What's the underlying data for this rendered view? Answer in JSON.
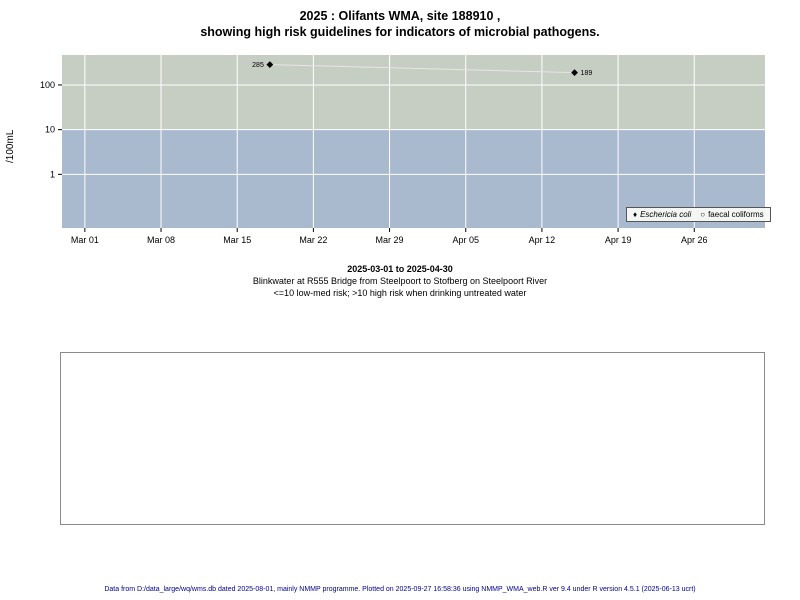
{
  "title": {
    "line1": "2025 : Olifants WMA, site 188910 ,",
    "line2": "showing high risk guidelines for indicators of microbial pathogens."
  },
  "chart_data": {
    "type": "scatter",
    "title": "2025 : Olifants WMA, site 188910 , showing high risk guidelines for indicators of microbial pathogens.",
    "ylabel": "/100mL",
    "y_scale": "log10",
    "y_tick_values": [
      1,
      10,
      100
    ],
    "y_tick_labels": [
      "1",
      "10",
      "100"
    ],
    "y_domain_log": [
      -1.2,
      2.67
    ],
    "x_tick_labels": [
      "Mar 01",
      "Mar 08",
      "Mar 15",
      "Mar 22",
      "Mar 29",
      "Apr 05",
      "Apr 12",
      "Apr 19",
      "Apr 26"
    ],
    "x_tick_days": [
      0,
      7,
      14,
      21,
      28,
      35,
      42,
      49,
      56
    ],
    "x_domain_days": [
      -2.1,
      62.5
    ],
    "risk_threshold": 10,
    "bands": {
      "high_risk_color": "#c6cdc3",
      "low_risk_color": "#a9bacf"
    },
    "grid_color": "#ffffff",
    "line_color": "#e6e6e6",
    "legend_position": "bottom-right",
    "legend": {
      "ecoli_marker": "♦",
      "faecal_marker": "○"
    },
    "series": [
      {
        "name": "Eschericia coli",
        "marker": "diamond",
        "points": [
          {
            "day": 17,
            "value": 285,
            "label": "285",
            "label_side": "left"
          },
          {
            "day": 45,
            "value": 189,
            "label": "189",
            "label_side": "right"
          }
        ]
      },
      {
        "name": "faecal coliforms",
        "marker": "circle",
        "points": []
      }
    ]
  },
  "caption": {
    "line1": "2025-03-01 to 2025-04-30",
    "line2": "Blinkwater at R555 Bridge from Steelpoort to Stofberg on Steelpoort River",
    "line3": "<=10 low-med risk; >10 high risk when drinking untreated water"
  },
  "footer": "Data from D:/data_large/wq/wms.db dated 2025-08-01, mainly NMMP programme. Plotted on 2025-09-27 16:58:36 using NMMP_WMA_web.R ver 9.4 under R version 4.5.1 (2025-06-13 ucrt)"
}
